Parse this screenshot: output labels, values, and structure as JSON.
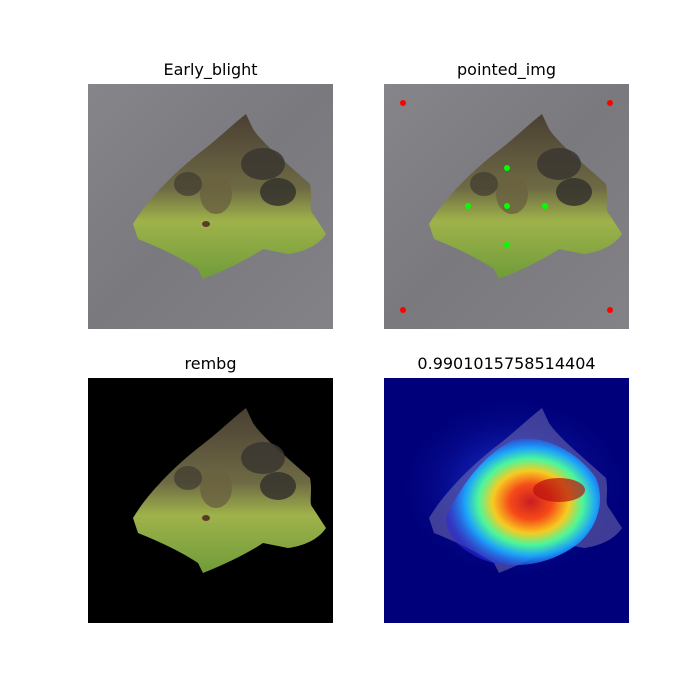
{
  "figure": {
    "panels": [
      {
        "title": "Early_blight",
        "content": "leaf photo on gray stone background"
      },
      {
        "title": "pointed_img",
        "content": "leaf photo with red corner points and green center points"
      },
      {
        "title": "rembg",
        "content": "leaf with background removed on black"
      },
      {
        "title": "0.9901015758514404",
        "content": "heatmap overlay on leaf"
      }
    ]
  },
  "colors": {
    "corner_point": "#ff0000",
    "center_point": "#00ff00",
    "background_stone": "#7f7e82",
    "removed_background": "#000000",
    "heatmap_base": "#00007a"
  }
}
